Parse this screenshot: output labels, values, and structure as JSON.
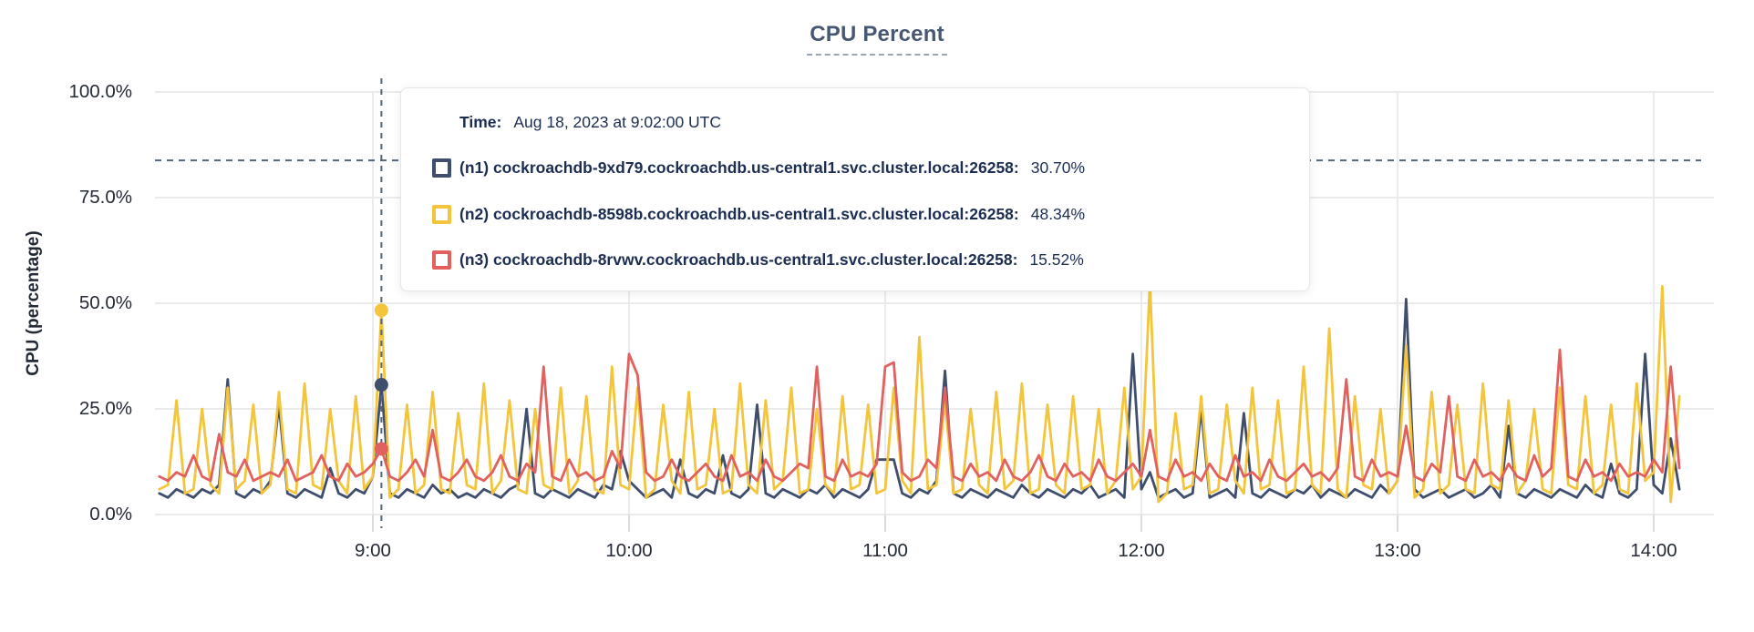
{
  "title": "CPU Percent",
  "tooltip": {
    "time_label": "Time:",
    "time_value": "Aug 18, 2023 at 9:02:00 UTC",
    "rows": [
      {
        "name": "(n1) cockroachdb-9xd79.cockroachdb.us-central1.svc.cluster.local:26258:",
        "value": "30.70%",
        "color": "#3f4e6c"
      },
      {
        "name": "(n2) cockroachdb-8598b.cockroachdb.us-central1.svc.cluster.local:26258:",
        "value": "48.34%",
        "color": "#f2c53d"
      },
      {
        "name": "(n3) cockroachdb-8rvwv.cockroachdb.us-central1.svc.cluster.local:26258:",
        "value": "15.52%",
        "color": "#e0615e"
      }
    ]
  },
  "chart_data": {
    "type": "line",
    "title": "CPU Percent",
    "xlabel": "",
    "ylabel": "CPU (percentage)",
    "ylim": [
      0,
      100
    ],
    "grid": true,
    "legend_position": "tooltip-overlay",
    "y_tick_labels": [
      "100.0%",
      "75.0%",
      "50.0%",
      "25.0%",
      "0.0%"
    ],
    "y_tick_values": [
      100,
      75,
      50,
      25,
      0
    ],
    "x_tick_labels": [
      "9:00",
      "10:00",
      "11:00",
      "12:00",
      "13:00",
      "14:00"
    ],
    "x_tick_minutes": [
      540,
      600,
      660,
      720,
      780,
      840
    ],
    "x_start_minutes": 490,
    "x_step_minutes": 2,
    "hover": {
      "time_minutes": 542,
      "time_text": "Aug 18, 2023 at 9:02:00 UTC",
      "crosshair_y_percent": 83.8,
      "points": [
        {
          "series": "n1",
          "value": 30.7
        },
        {
          "series": "n2",
          "value": 48.34
        },
        {
          "series": "n3",
          "value": 15.52
        }
      ]
    },
    "series": [
      {
        "id": "n1",
        "name": "(n1) cockroachdb-9xd79.cockroachdb.us-central1.svc.cluster.local:26258",
        "color": "#3f4e6c",
        "values": [
          5,
          4,
          6,
          5,
          4,
          6,
          5,
          7,
          32,
          5,
          4,
          6,
          5,
          8,
          26,
          5,
          4,
          6,
          5,
          4,
          11,
          5,
          4,
          6,
          5,
          9,
          30.7,
          5,
          4,
          6,
          5,
          4,
          7,
          5,
          6,
          4,
          5,
          4,
          6,
          5,
          4,
          6,
          7,
          25,
          5,
          4,
          6,
          5,
          4,
          6,
          5,
          4,
          7,
          6,
          15,
          8,
          6,
          4,
          5,
          6,
          4,
          13,
          5,
          4,
          6,
          5,
          14,
          5,
          4,
          6,
          26,
          5,
          4,
          6,
          5,
          4,
          6,
          5,
          7,
          4,
          6,
          5,
          4,
          6,
          13,
          13,
          13,
          5,
          4,
          6,
          5,
          8,
          34,
          5,
          4,
          6,
          5,
          4,
          6,
          5,
          4,
          7,
          5,
          4,
          6,
          5,
          4,
          6,
          5,
          7,
          4,
          5,
          6,
          4,
          38,
          6,
          10,
          4,
          5,
          6,
          4,
          5,
          25,
          4,
          5,
          6,
          4,
          24,
          5,
          4,
          6,
          5,
          4,
          6,
          5,
          7,
          4,
          6,
          5,
          4,
          6,
          5,
          4,
          7,
          5,
          8,
          51,
          6,
          4,
          5,
          6,
          4,
          5,
          6,
          4,
          5,
          7,
          4,
          21,
          5,
          4,
          6,
          5,
          4,
          6,
          5,
          4,
          7,
          5,
          4,
          12,
          5,
          4,
          6,
          38,
          7,
          5,
          18,
          6
        ]
      },
      {
        "id": "n2",
        "name": "(n2) cockroachdb-8598b.cockroachdb.us-central1.svc.cluster.local:26258",
        "color": "#f2c53d",
        "values": [
          6,
          7,
          27,
          5,
          6,
          25,
          7,
          5,
          30,
          6,
          8,
          26,
          5,
          7,
          29,
          6,
          5,
          31,
          7,
          6,
          25,
          8,
          5,
          28,
          6,
          9,
          48.34,
          4,
          6,
          26,
          5,
          7,
          29,
          6,
          5,
          24,
          7,
          6,
          31,
          5,
          8,
          27,
          6,
          5,
          25,
          7,
          6,
          30,
          5,
          8,
          28,
          6,
          5,
          35,
          7,
          6,
          30,
          4,
          6,
          26,
          8,
          5,
          29,
          6,
          7,
          25,
          5,
          6,
          31,
          7,
          5,
          27,
          6,
          8,
          30,
          5,
          6,
          25,
          7,
          5,
          28,
          6,
          7,
          26,
          5,
          6,
          30,
          8,
          5,
          42,
          6,
          7,
          27,
          5,
          6,
          25,
          7,
          5,
          29,
          6,
          8,
          31,
          5,
          6,
          26,
          7,
          5,
          28,
          6,
          7,
          25,
          5,
          8,
          30,
          6,
          9,
          55,
          3,
          5,
          24,
          6,
          7,
          28,
          5,
          6,
          26,
          8,
          5,
          30,
          6,
          7,
          27,
          5,
          6,
          35,
          7,
          5,
          44,
          6,
          4,
          28,
          7,
          6,
          25,
          5,
          8,
          40,
          4,
          6,
          29,
          5,
          7,
          26,
          6,
          5,
          31,
          7,
          6,
          27,
          5,
          8,
          25,
          6,
          5,
          30,
          7,
          6,
          28,
          5,
          7,
          26,
          6,
          5,
          31,
          8,
          10,
          54,
          3,
          28
        ]
      },
      {
        "id": "n3",
        "name": "(n3) cockroachdb-8rvwv.cockroachdb.us-central1.svc.cluster.local:26258",
        "color": "#e0615e",
        "values": [
          9,
          8,
          10,
          9,
          14,
          9,
          8,
          19,
          10,
          9,
          13,
          8,
          9,
          10,
          9,
          13,
          8,
          9,
          10,
          14,
          9,
          8,
          12,
          9,
          10,
          12,
          15.52,
          9,
          8,
          10,
          13,
          9,
          20,
          9,
          8,
          10,
          13,
          9,
          8,
          10,
          14,
          9,
          8,
          12,
          10,
          35,
          9,
          8,
          13,
          9,
          10,
          8,
          9,
          15,
          11,
          38,
          33,
          10,
          8,
          9,
          13,
          9,
          8,
          10,
          12,
          9,
          8,
          14,
          9,
          10,
          8,
          13,
          9,
          8,
          10,
          12,
          11,
          35,
          9,
          8,
          13,
          9,
          10,
          9,
          12,
          35,
          36,
          10,
          8,
          9,
          13,
          11,
          30,
          9,
          8,
          12,
          9,
          10,
          8,
          13,
          9,
          8,
          10,
          14,
          9,
          8,
          12,
          9,
          10,
          8,
          13,
          9,
          8,
          10,
          12,
          9,
          20,
          9,
          8,
          13,
          9,
          10,
          8,
          12,
          9,
          8,
          14,
          9,
          10,
          8,
          13,
          9,
          8,
          10,
          12,
          9,
          10,
          8,
          11,
          32,
          9,
          8,
          13,
          9,
          10,
          9,
          21,
          9,
          8,
          12,
          10,
          28,
          9,
          8,
          13,
          9,
          10,
          8,
          12,
          9,
          8,
          14,
          9,
          11,
          39,
          9,
          8,
          13,
          9,
          10,
          8,
          12,
          9,
          10,
          9,
          13,
          10,
          35,
          11
        ]
      }
    ]
  }
}
